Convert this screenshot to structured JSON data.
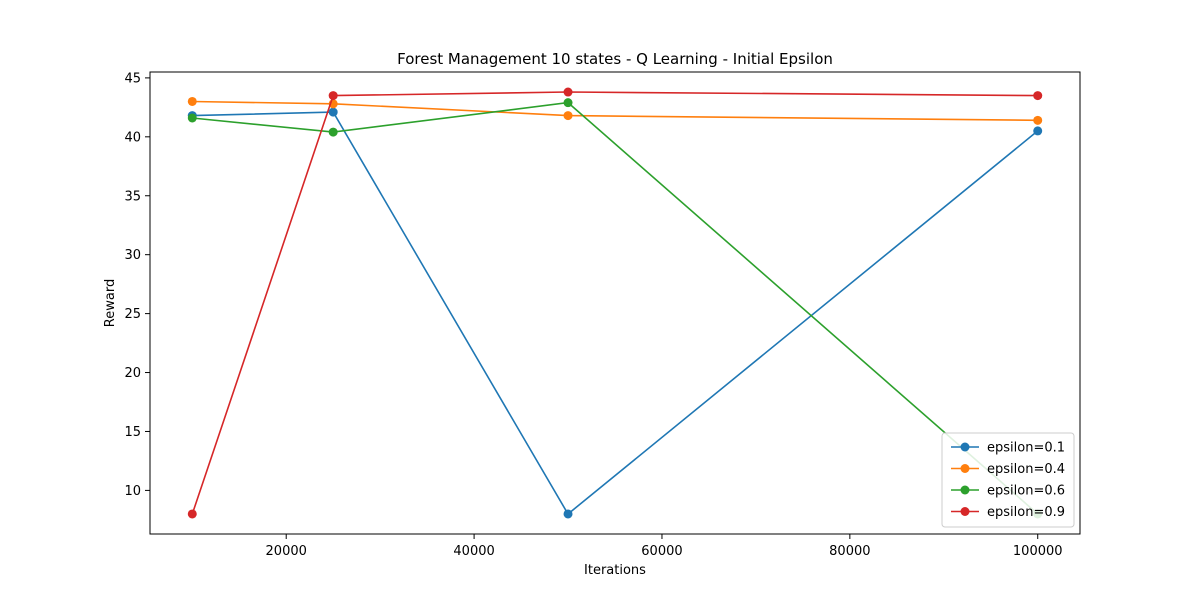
{
  "chart_data": {
    "type": "line",
    "title": "Forest Management 10 states - Q Learning - Initial Epsilon",
    "xlabel": "Iterations",
    "ylabel": "Reward",
    "x": [
      10000,
      25000,
      50000,
      100000
    ],
    "xlim": [
      5500,
      104500
    ],
    "ylim": [
      6.3,
      45.5
    ],
    "xticks": [
      20000,
      40000,
      60000,
      80000,
      100000
    ],
    "yticks": [
      10,
      15,
      20,
      25,
      30,
      35,
      40,
      45
    ],
    "grid": false,
    "legend_position": "lower-right",
    "series": [
      {
        "name": "epsilon=0.1",
        "color": "#1f77b4",
        "values": [
          41.8,
          42.1,
          8.0,
          40.5
        ]
      },
      {
        "name": "epsilon=0.4",
        "color": "#ff7f0e",
        "values": [
          43.0,
          42.8,
          41.8,
          41.4
        ]
      },
      {
        "name": "epsilon=0.6",
        "color": "#2ca02c",
        "values": [
          41.6,
          40.4,
          42.9,
          8.0
        ]
      },
      {
        "name": "epsilon=0.9",
        "color": "#d62728",
        "values": [
          8.0,
          43.5,
          43.8,
          43.5
        ]
      }
    ]
  }
}
